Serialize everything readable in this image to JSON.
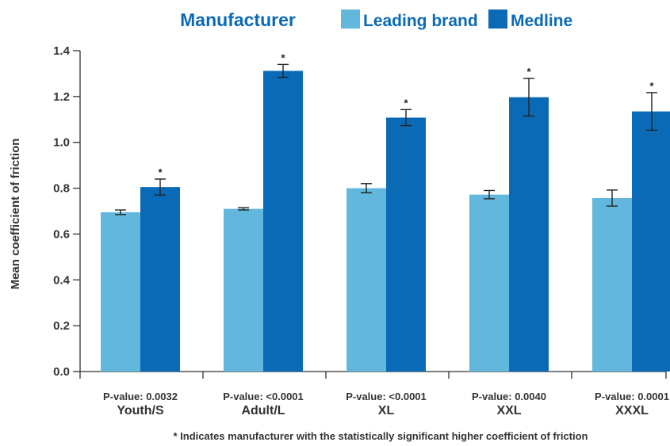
{
  "chart_data": {
    "type": "bar",
    "legend_title": "Manufacturer",
    "categories": [
      "Youth/S",
      "Adult/L",
      "XL",
      "XXL",
      "XXXL"
    ],
    "p_values": [
      "P-value: 0.0032",
      "P-value: <0.0001",
      "P-value: <0.0001",
      "P-value: 0.0040",
      "P-value: 0.0001"
    ],
    "series": [
      {
        "name": "Leading brand",
        "color": "#62b8dc",
        "values": [
          0.695,
          0.71,
          0.8,
          0.772,
          0.757
        ],
        "errors": [
          0.01,
          0.005,
          0.02,
          0.018,
          0.035
        ],
        "significant": [
          false,
          false,
          false,
          false,
          false
        ]
      },
      {
        "name": "Medline",
        "color": "#0a6ab5",
        "values": [
          0.805,
          1.312,
          1.108,
          1.197,
          1.135
        ],
        "errors": [
          0.035,
          0.028,
          0.035,
          0.082,
          0.082
        ],
        "significant": [
          true,
          true,
          true,
          true,
          true
        ]
      }
    ],
    "significance_marker": "*",
    "ylabel": "Mean coefficient of friction",
    "xlabel": "",
    "ylim": [
      0,
      1.4
    ],
    "yticks": [
      "0.0",
      "0.2",
      "0.4",
      "0.6",
      "0.8",
      "1.0",
      "1.2",
      "1.4"
    ],
    "grid": false,
    "legend_position": "top",
    "footnote": "* Indicates manufacturer with the statistically significant higher coefficient of friction"
  }
}
